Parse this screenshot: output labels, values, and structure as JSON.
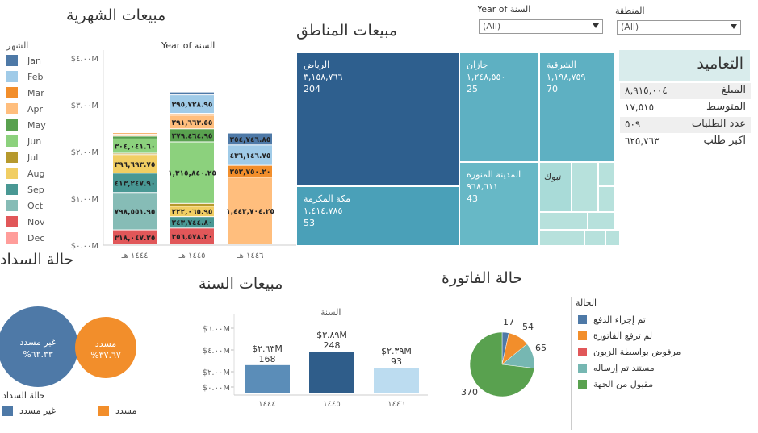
{
  "monthly": {
    "title": "مبيعات الشهرية",
    "legend_title": "الشهر",
    "col_header": "Year of السنة",
    "y_ticks": [
      "$٤.٠٠M",
      "$٣.٠٠M",
      "$٢.٠٠M",
      "$١.٠٠M",
      "$٠.٠٠M"
    ],
    "months": [
      {
        "name": "Jan",
        "color": "#4e79a7"
      },
      {
        "name": "Feb",
        "color": "#a0cbe8"
      },
      {
        "name": "Mar",
        "color": "#f28e2b"
      },
      {
        "name": "Apr",
        "color": "#ffbe7d"
      },
      {
        "name": "May",
        "color": "#59a14f"
      },
      {
        "name": "Jun",
        "color": "#8cd17d"
      },
      {
        "name": "Jul",
        "color": "#b6992d"
      },
      {
        "name": "Aug",
        "color": "#f1ce63"
      },
      {
        "name": "Sep",
        "color": "#499894"
      },
      {
        "name": "Oct",
        "color": "#86bcb6"
      },
      {
        "name": "Nov",
        "color": "#e15759"
      },
      {
        "name": "Dec",
        "color": "#ff9d9a"
      }
    ]
  },
  "chart_data": [
    {
      "type": "bar",
      "title": "مبيعات الشهرية",
      "subtitle": "Year of السنة",
      "categories": [
        "١٤٤٤ هـ",
        "١٤٤٥ هـ",
        "١٤٤٦ هـ"
      ],
      "ylim": [
        0,
        4000000
      ],
      "y_ticks": [
        0,
        1000000,
        2000000,
        3000000,
        4000000
      ],
      "stacked": true,
      "legend": "left",
      "series": [
        {
          "name": "Nov",
          "color": "#e15759",
          "values": [
            318047.25,
            356578.2,
            0
          ],
          "labels": [
            "٣١٨,٠٤٧.٢٥",
            "٣٥٦,٥٧٨.٢٠",
            ""
          ]
        },
        {
          "name": "Oct",
          "color": "#86bcb6",
          "values": [
            798551.95,
            0,
            0
          ],
          "labels": [
            "٧٩٨,٥٥١.٩٥",
            "",
            ""
          ]
        },
        {
          "name": "Sep",
          "color": "#499894",
          "values": [
            413247.9,
            243744.8,
            0
          ],
          "labels": [
            "٤١٣,٢٤٧.٩٠",
            "٢٤٣,٧٤٤.٨٠",
            ""
          ]
        },
        {
          "name": "Aug",
          "color": "#f1ce63",
          "values": [
            396693.75,
            222065.95,
            0
          ],
          "labels": [
            "٣٩٦,٦٩٣.٧٥",
            "٢٢٢,٠٦٥.٩٥",
            ""
          ]
        },
        {
          "name": "Jul",
          "color": "#b6992d",
          "values": [
            30000,
            60000,
            0
          ],
          "labels": [
            "",
            "",
            ""
          ]
        },
        {
          "name": "Jun",
          "color": "#8cd17d",
          "values": [
            304041.6,
            1315840.25,
            0
          ],
          "labels": [
            "٣٠٤,٠٤١.٦٠",
            "١,٣١٥,٨٤٠.٢٥",
            ""
          ]
        },
        {
          "name": "May",
          "color": "#59a14f",
          "values": [
            60000,
            279464.95,
            0
          ],
          "labels": [
            "",
            "٢٧٩,٤٦٤.٩٥",
            ""
          ]
        },
        {
          "name": "Apr",
          "color": "#ffbe7d",
          "values": [
            40000,
            291663.55,
            1443704.25
          ],
          "labels": [
            "",
            "٢٩١,٦٦٣.٥٥",
            "١,٤٤٣,٧٠٤.٢٥"
          ]
        },
        {
          "name": "Mar",
          "color": "#f28e2b",
          "values": [
            30000,
            40000,
            252750.2
          ],
          "labels": [
            "",
            "",
            "٢٥٢,٧٥٠.٢٠"
          ]
        },
        {
          "name": "Feb",
          "color": "#a0cbe8",
          "values": [
            0,
            395728.95,
            436146.75
          ],
          "labels": [
            "",
            "٣٩٥,٧٢٨.٩٥",
            "٤٣٦,١٤٦.٧٥"
          ]
        },
        {
          "name": "Jan",
          "color": "#4e79a7",
          "values": [
            0,
            60000,
            254746.85
          ],
          "labels": [
            "",
            "",
            "٢٥٤,٧٤٦.٨٥"
          ]
        }
      ]
    },
    {
      "type": "bar",
      "title": "مبيعات السنة",
      "subtitle": "السنة",
      "categories": [
        "١٤٤٤",
        "١٤٤٥",
        "١٤٤٦"
      ],
      "values": [
        2630000,
        3890000,
        2390000
      ],
      "value_labels": [
        "$٢.٦٣M",
        "$٣.٨٩M",
        "$٢.٣٩M"
      ],
      "counts": [
        168,
        248,
        93
      ],
      "colors": [
        "#5b8db8",
        "#2f5d8a",
        "#bcdcf0"
      ],
      "ylim": [
        0,
        6000000
      ],
      "y_ticks": [
        "$٦.٠٠M",
        "$٤.٠٠M",
        "$٢.٠٠M",
        "$٠.٠٠M"
      ]
    },
    {
      "type": "pie",
      "title": "حالة الفاتورة",
      "legend_title": "الحالة",
      "slices": [
        {
          "name": "تم إجراء الدفع",
          "value": 17,
          "color": "#4e79a7"
        },
        {
          "name": "لم ترفع الفاتورة",
          "value": 54,
          "color": "#f28e2b"
        },
        {
          "name": "مرفوض بواسطة الزبون",
          "value": 0,
          "color": "#e15759"
        },
        {
          "name": "مستند تم إرساله",
          "value": 65,
          "color": "#76b7b2"
        },
        {
          "name": "مقبول من الجهة",
          "value": 370,
          "color": "#59a14f"
        }
      ]
    },
    {
      "type": "treemap",
      "title": "مبيعات المناطق",
      "cells": [
        {
          "name": "الرياض",
          "value": "٣,١٥٨,٧٦٦",
          "count": "204",
          "color": "#2e5f8e"
        },
        {
          "name": "مكة المكرمة",
          "value": "١,٤١٤,٧٨٥",
          "count": "53",
          "color": "#4aa0b8"
        },
        {
          "name": "جازان",
          "value": "١,٢٤٨,٥٥٠",
          "count": "25",
          "color": "#5eb0c2"
        },
        {
          "name": "الشرقية",
          "value": "١,١٩٨,٧٥٩",
          "count": "70",
          "color": "#5eb0c2"
        },
        {
          "name": "المدينة المنورة",
          "value": "٩٦٨,٦١١",
          "count": "43",
          "color": "#67b8c6"
        },
        {
          "name": "تبوك",
          "value": "",
          "count": "",
          "color": "#a9dbd8"
        }
      ]
    }
  ],
  "filters": {
    "year": {
      "label": "Year of السنة",
      "value": "(All)"
    },
    "region": {
      "label": "المنطقة",
      "value": "(All)"
    }
  },
  "kpis": {
    "title": "التعاميد",
    "rows": [
      {
        "label": "المبلغ",
        "value": "٨,٩١٥,٠٠٤"
      },
      {
        "label": "المتوسط",
        "value": "١٧,٥١٥"
      },
      {
        "label": "عدد الطلبات",
        "value": "٥٠٩"
      },
      {
        "label": "اكبر طلب",
        "value": "٦٢٥,٧٦٣"
      }
    ]
  },
  "payment": {
    "title": "حالة السداد",
    "unpaid": {
      "label": "غير مسدد",
      "pct": "%٦٢.٣٣",
      "color": "#4e79a7"
    },
    "paid": {
      "label": "مسدد",
      "pct": "%٣٧.٦٧",
      "color": "#f28e2b"
    },
    "legend_title": "حالة السداد"
  }
}
